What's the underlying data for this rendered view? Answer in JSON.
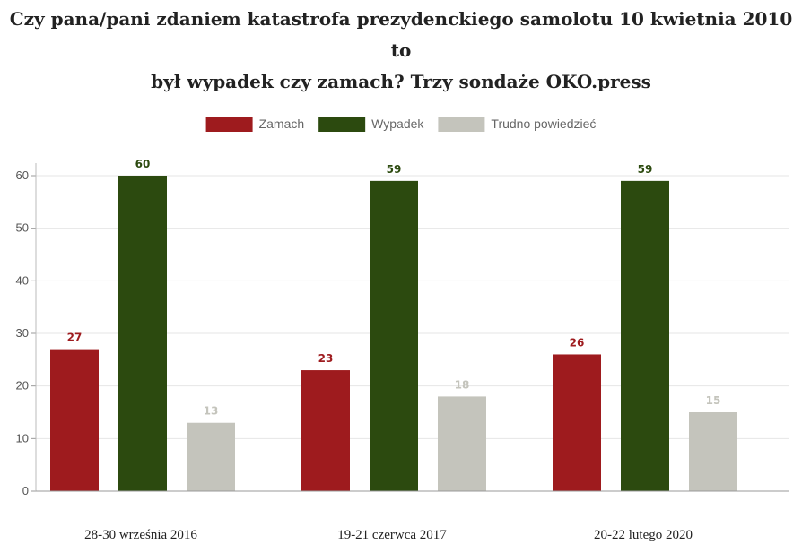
{
  "chart_data": {
    "type": "bar",
    "title_lines": [
      "Czy pana/pani zdaniem katastrofa prezydenckiego samolotu 10 kwietnia 2010 to",
      "był wypadek czy zamach? Trzy sondaże OKO.press"
    ],
    "categories": [
      "28-30 września 2016",
      "19-21 czerwca 2017",
      "20-22 lutego 2020"
    ],
    "series": [
      {
        "name": "Zamach",
        "color": "#9e1b1e",
        "values": [
          27,
          23,
          26
        ]
      },
      {
        "name": "Wypadek",
        "color": "#2c4a0f",
        "values": [
          60,
          59,
          59
        ]
      },
      {
        "name": "Trudno powiedzieć",
        "color": "#c4c4bc",
        "values": [
          13,
          18,
          15
        ]
      }
    ],
    "ylim": [
      0,
      60
    ],
    "yticks": [
      0,
      10,
      20,
      30,
      40,
      50,
      60
    ],
    "grid": true,
    "legend_position": "top-center"
  }
}
